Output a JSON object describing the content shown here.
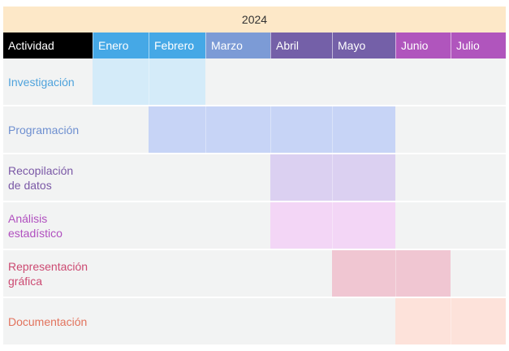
{
  "year": "2024",
  "columns": {
    "activity": "Actividad",
    "months": [
      "Enero",
      "Febrero",
      "Marzo",
      "Abril",
      "Mayo",
      "Junio",
      "Julio"
    ]
  },
  "header_colors": [
    "#000000",
    "#45a8e6",
    "#45a8e6",
    "#7c9bd6",
    "#7460a8",
    "#7460a8",
    "#b055bd",
    "#b055bd"
  ],
  "activities": [
    {
      "label": "Investigación",
      "color": "#4fa3dc",
      "bar_color": "#d4ebf9",
      "start_month": "Enero",
      "end_month": "Febrero"
    },
    {
      "label": "Programación",
      "color": "#6e8fd0",
      "bar_color": "#c7d4f6",
      "start_month": "Febrero",
      "end_month": "Mayo"
    },
    {
      "label": "Recopilación\nde datos",
      "color": "#7a58a6",
      "bar_color": "#dbd0f1",
      "start_month": "Abril",
      "end_month": "Mayo"
    },
    {
      "label": "Análisis\nestadístico",
      "color": "#b04fbf",
      "bar_color": "#f3d6f6",
      "start_month": "Abril",
      "end_month": "Mayo"
    },
    {
      "label": "Representación\ngráfica",
      "color": "#cc4a72",
      "bar_color": "#f0c6d2",
      "start_month": "Mayo",
      "end_month": "Junio"
    },
    {
      "label": "Documentación",
      "color": "#e2735d",
      "bar_color": "#fde2da",
      "start_month": "Junio",
      "end_month": "Julio"
    }
  ]
}
